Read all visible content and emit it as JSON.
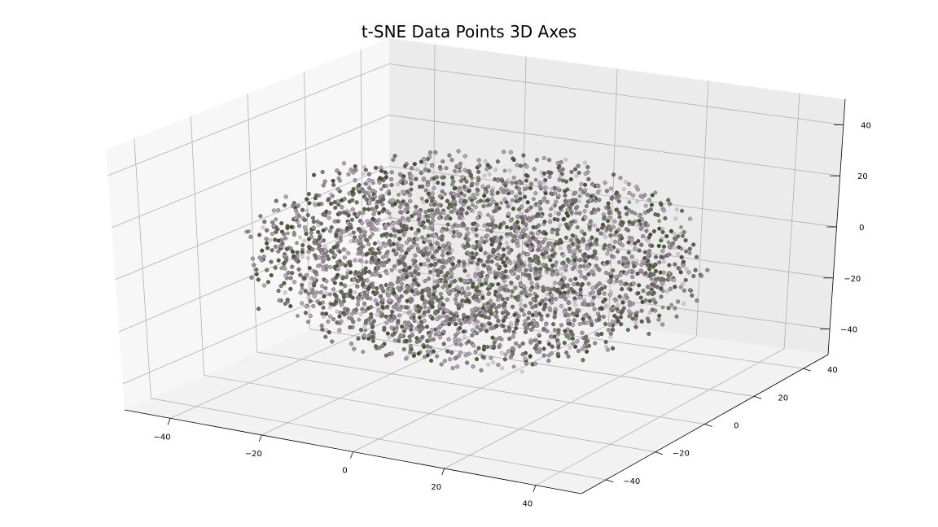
{
  "chart_data": {
    "type": "scatter",
    "projection": "3d",
    "title": "t-SNE Data Points 3D Axes",
    "xlabel": "",
    "ylabel": "",
    "zlabel": "",
    "xlim": [
      -50,
      50
    ],
    "ylim": [
      -50,
      50
    ],
    "zlim": [
      -50,
      50
    ],
    "x_ticks": [
      -40,
      -20,
      0,
      20,
      40
    ],
    "y_ticks": [
      -40,
      -20,
      0,
      20,
      40
    ],
    "z_ticks": [
      -40,
      -20,
      0,
      20,
      40
    ],
    "grid": true,
    "point_count_shown": 16000,
    "distribution": "ellipsoid cloud centered near origin; x ≈ -45..45, y ≈ -40..40, z ≈ -35..35",
    "marker_colors": {
      "face_light": "#b7a9b8",
      "face_dark": "#4a4a3a",
      "accent": "#2e5a10",
      "edge": "#6a5a6a"
    },
    "pane_colors": [
      "#f2f2f2",
      "#ebebeb",
      "#f7f7f7"
    ]
  }
}
